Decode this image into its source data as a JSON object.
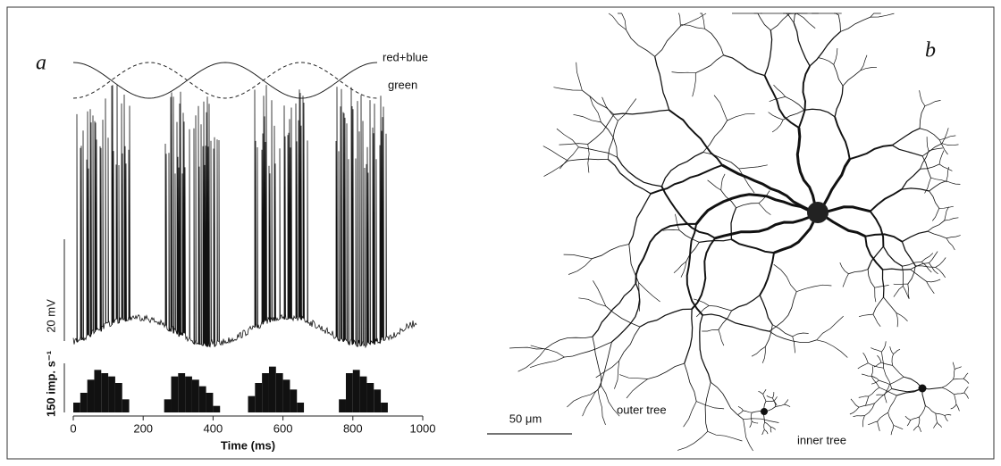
{
  "panel_a": {
    "label": "a",
    "stimulus_labels": [
      "red+blue",
      "green"
    ],
    "voltage_scale_label": "20 mV",
    "rate_scale_label": "150 imp. s⁻¹"
  },
  "panel_b": {
    "label": "b",
    "scale_bar_label": "50 μm",
    "outer_tree_label": "outer tree",
    "inner_tree_label": "inner tree"
  },
  "chart_data": {
    "type": "histogram",
    "xlabel": "Time (ms)",
    "bins": [
      0,
      20,
      40,
      60,
      80,
      100,
      120,
      140,
      160,
      180,
      200,
      220,
      240,
      260,
      280,
      300,
      320,
      340,
      360,
      380,
      400,
      420,
      440,
      460,
      480,
      500,
      520,
      540,
      560,
      580,
      600,
      620,
      640,
      660,
      680,
      700,
      720,
      740,
      760,
      780,
      800,
      820,
      840,
      860,
      880,
      900,
      920,
      940,
      960,
      980,
      1000
    ],
    "values": [
      30,
      60,
      100,
      130,
      120,
      110,
      90,
      40,
      0,
      0,
      0,
      0,
      0,
      40,
      110,
      120,
      110,
      100,
      80,
      60,
      20,
      0,
      0,
      0,
      0,
      50,
      90,
      120,
      140,
      120,
      100,
      70,
      30,
      0,
      0,
      0,
      0,
      0,
      40,
      120,
      130,
      110,
      90,
      70,
      30,
      0,
      0,
      0,
      0,
      0
    ],
    "color": "#111111",
    "xlim": [
      0,
      1000
    ],
    "xticks": [
      0,
      200,
      400,
      600,
      800,
      1000
    ],
    "ylim": [
      0,
      150
    ]
  }
}
